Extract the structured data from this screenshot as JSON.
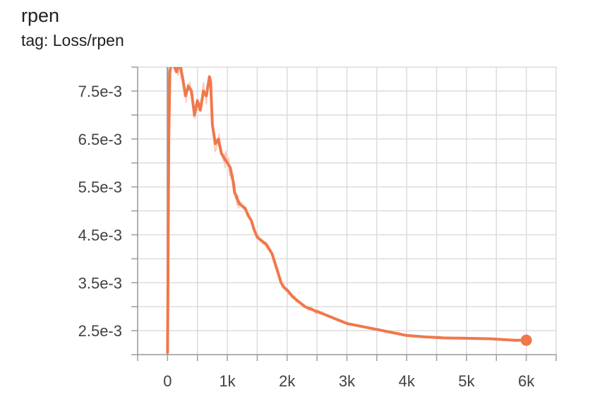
{
  "header": {
    "title": "rpen",
    "subtitle": "tag: Loss/rpen"
  },
  "colors": {
    "line": "#f0784b",
    "raw": "#f6c2ac",
    "grid": "#dcdcdc",
    "axis": "#9e9e9e"
  },
  "chart_data": {
    "type": "line",
    "title": "rpen",
    "subtitle": "tag: Loss/rpen",
    "xlabel": "",
    "ylabel": "",
    "xlim": [
      -500,
      6500
    ],
    "ylim": [
      0.002,
      0.008
    ],
    "x_ticks": [
      0,
      1000,
      2000,
      3000,
      4000,
      5000,
      6000
    ],
    "x_tick_labels": [
      "0",
      "1k",
      "2k",
      "3k",
      "4k",
      "5k",
      "6k"
    ],
    "y_ticks": [
      0.0025,
      0.0035,
      0.0045,
      0.0055,
      0.0065,
      0.0075
    ],
    "y_tick_labels": [
      "2.5e-3",
      "3.5e-3",
      "4.5e-3",
      "5.5e-3",
      "6.5e-3",
      "7.5e-3"
    ],
    "grid": true,
    "legend": "none",
    "series": [
      {
        "name": "",
        "smoothed": true,
        "x": [
          0,
          20,
          40,
          60,
          100,
          150,
          200,
          250,
          300,
          350,
          400,
          450,
          500,
          550,
          600,
          650,
          700,
          720,
          750,
          800,
          850,
          900,
          950,
          1000,
          1050,
          1100,
          1120,
          1150,
          1200,
          1250,
          1300,
          1350,
          1400,
          1450,
          1500,
          1550,
          1600,
          1650,
          1700,
          1750,
          1800,
          1850,
          1900,
          1950,
          2000,
          2100,
          2200,
          2300,
          2400,
          2500,
          2600,
          2700,
          2800,
          3000,
          3200,
          3400,
          3600,
          3800,
          4000,
          4300,
          4600,
          5000,
          5400,
          5800,
          6000
        ],
        "y": [
          0.00205,
          0.0065,
          0.0079,
          0.00805,
          0.00805,
          0.0079,
          0.0081,
          0.0078,
          0.0074,
          0.0076,
          0.0075,
          0.007,
          0.0073,
          0.0071,
          0.0075,
          0.0074,
          0.0078,
          0.0077,
          0.0068,
          0.0064,
          0.0065,
          0.0062,
          0.0061,
          0.006,
          0.0059,
          0.0056,
          0.0054,
          0.0053,
          0.00515,
          0.0051,
          0.00505,
          0.0049,
          0.0048,
          0.0046,
          0.00445,
          0.0044,
          0.00435,
          0.0043,
          0.0042,
          0.0041,
          0.0039,
          0.0037,
          0.0035,
          0.0034,
          0.00335,
          0.0032,
          0.0031,
          0.003,
          0.00295,
          0.0029,
          0.00285,
          0.0028,
          0.00275,
          0.00265,
          0.0026,
          0.00255,
          0.0025,
          0.00245,
          0.0024,
          0.00237,
          0.00235,
          0.00234,
          0.00233,
          0.0023,
          0.0023
        ]
      }
    ],
    "last_point": {
      "x": 6000,
      "y": 0.0023
    }
  }
}
